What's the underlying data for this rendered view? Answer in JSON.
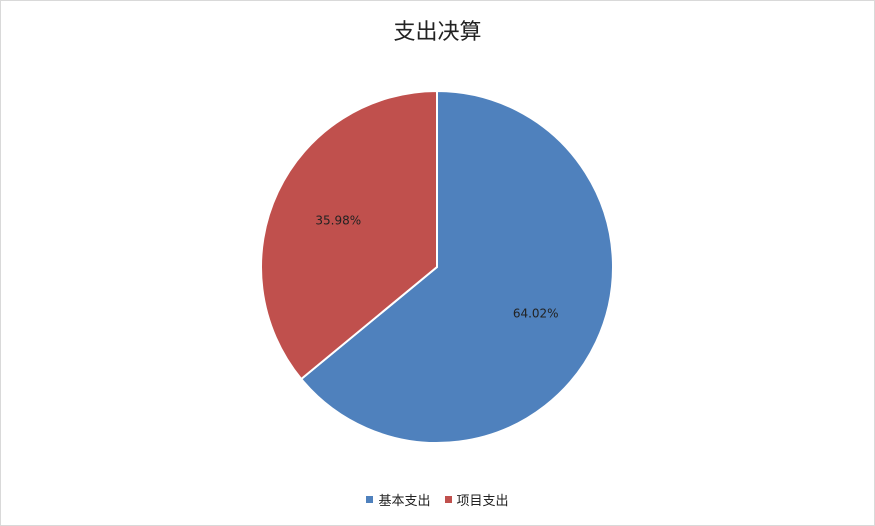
{
  "chart_data": {
    "type": "pie",
    "title": "支出决算",
    "categories": [
      "基本支出",
      "项目支出"
    ],
    "values": [
      64.02,
      35.98
    ],
    "data_labels": [
      "64.02%",
      "35.98%"
    ],
    "colors": [
      "#4F81BD",
      "#C0504D"
    ],
    "legend_position": "bottom",
    "start": "12 o'clock",
    "direction": "clockwise"
  }
}
